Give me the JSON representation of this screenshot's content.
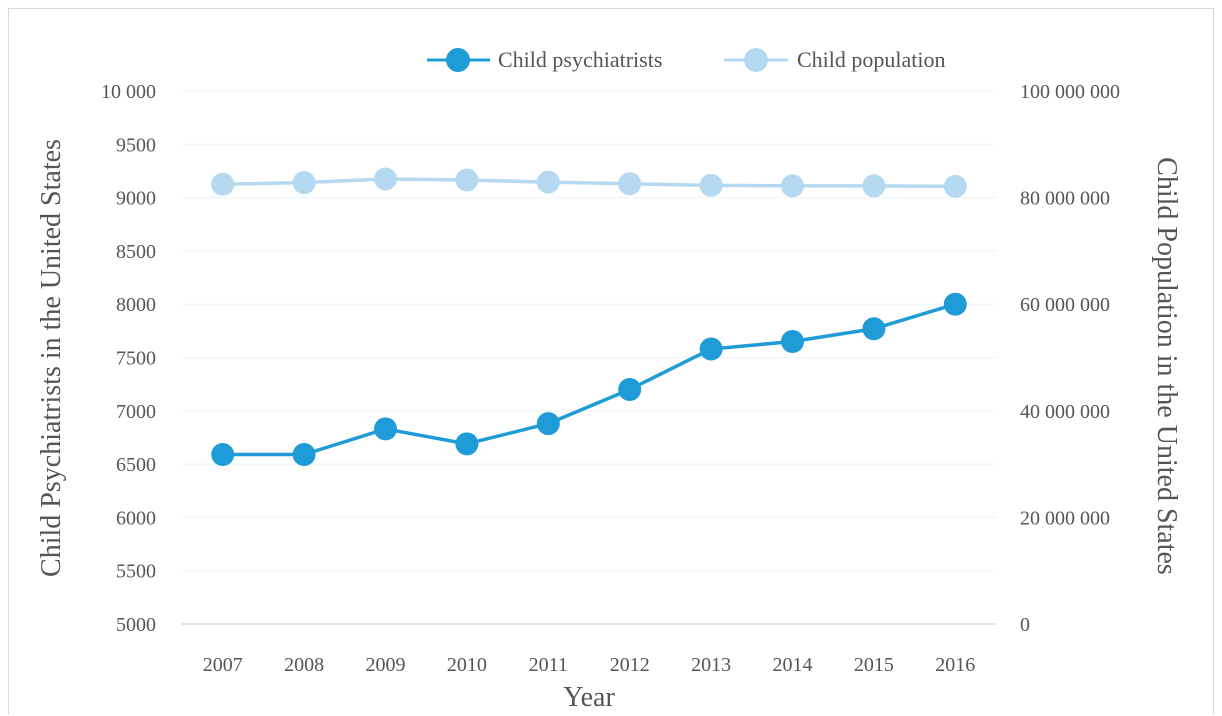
{
  "chart_data": {
    "type": "line",
    "xlabel": "Year",
    "ylabel_left": "Child Psychiatrists in the United States",
    "ylabel_right": "Child Population in the United States",
    "x": [
      "2007",
      "2008",
      "2009",
      "2010",
      "2011",
      "2012",
      "2013",
      "2014",
      "2015",
      "2016"
    ],
    "y_left_range": [
      5000,
      10000
    ],
    "y_left_ticks": [
      "5000",
      "5500",
      "6000",
      "6500",
      "7000",
      "7500",
      "8000",
      "8500",
      "9000",
      "9500",
      "10 000"
    ],
    "y_right_range": [
      0,
      100000000
    ],
    "y_right_ticks": [
      "0",
      "20 000 000",
      "40 000 000",
      "60 000 000",
      "80 000 000",
      "100 000 000"
    ],
    "grid": true,
    "legend_position": "top-right",
    "series": [
      {
        "name": "Child psychiatrists",
        "axis": "left",
        "color": "#1f9bd7",
        "values": [
          6590,
          6590,
          6830,
          6690,
          6880,
          7200,
          7580,
          7650,
          7770,
          8000
        ]
      },
      {
        "name": "Child population",
        "axis": "right",
        "color": "#b4d9f0",
        "values": [
          82500000,
          82800000,
          83500000,
          83300000,
          82900000,
          82600000,
          82300000,
          82200000,
          82200000,
          82100000
        ]
      }
    ]
  }
}
